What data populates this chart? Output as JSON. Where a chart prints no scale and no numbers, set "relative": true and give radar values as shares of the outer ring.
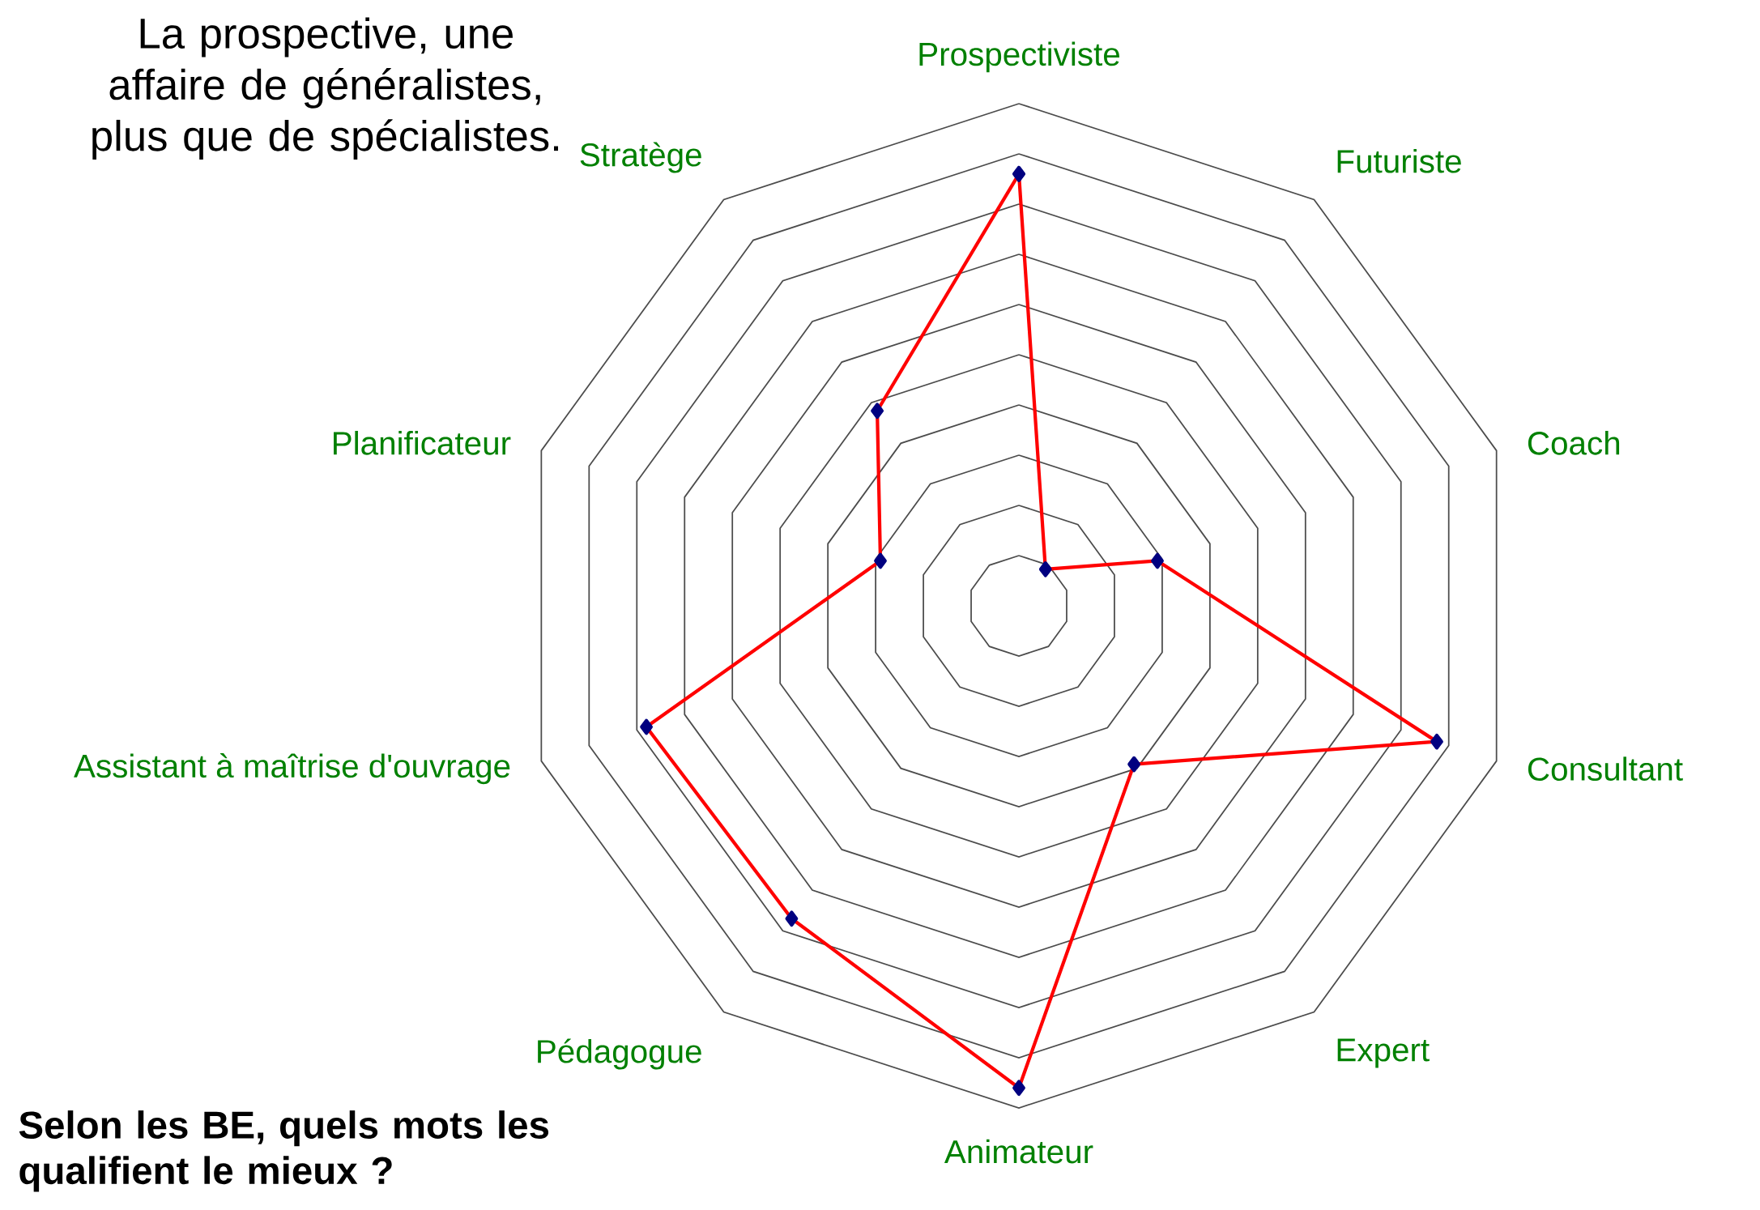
{
  "chart_data": {
    "type": "radar",
    "title": "La prospective, une affaire de généralistes, plus que de spécialistes.",
    "annotations": [
      "Selon les BE, quels mots les qualifient le mieux ?"
    ],
    "categories": [
      "Prospectiviste",
      "Futuriste",
      "Coach",
      "Consultant",
      "Expert",
      "Animateur",
      "Pédagogue",
      "Assistant à maîtrise d'ouvrage",
      "Planificateur",
      "Stratège"
    ],
    "relative": true,
    "grid": true,
    "marker": "diamond",
    "line_style": "solid",
    "series": [
      {
        "color": "#ff0000",
        "values": [
          0.86,
          0.09,
          0.29,
          0.875,
          0.39,
          0.96,
          0.77,
          0.78,
          0.29,
          0.48
        ]
      }
    ]
  }
}
